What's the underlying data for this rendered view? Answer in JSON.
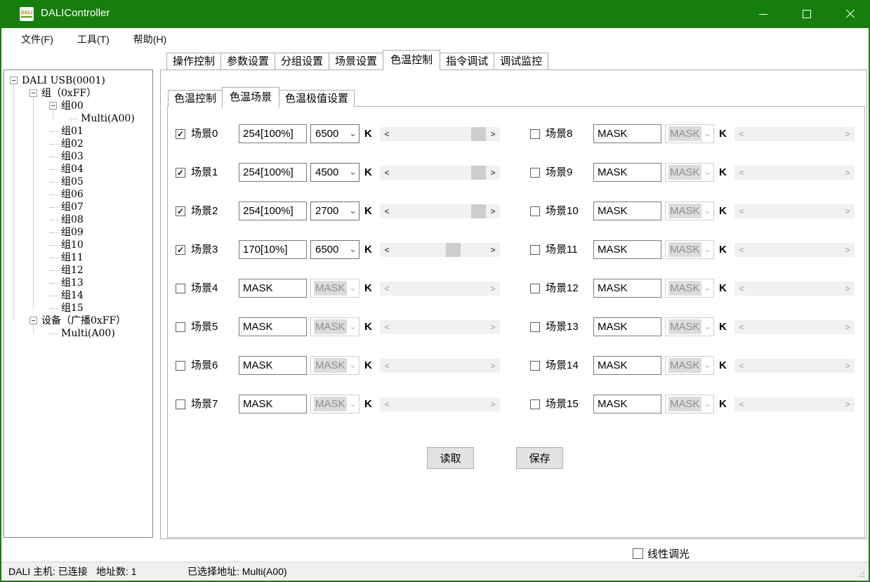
{
  "window": {
    "title": "DALIController",
    "icon_text": "DALI",
    "controls": [
      {
        "name": "minimize"
      },
      {
        "name": "maximize"
      },
      {
        "name": "close"
      }
    ]
  },
  "menu": {
    "items": [
      {
        "label": "文件(F)"
      },
      {
        "label": "工具(T)"
      },
      {
        "label": "帮助(H)"
      }
    ]
  },
  "tree": {
    "rows": [
      {
        "label": "DALI USB(0001)",
        "depth": 0,
        "expand": true
      },
      {
        "label": "组（0xFF）",
        "depth": 1,
        "expand": true
      },
      {
        "label": "组00",
        "depth": 2,
        "expand": true
      },
      {
        "label": "Multi(A00)",
        "depth": 3,
        "expand": false
      },
      {
        "label": "组01",
        "depth": 2,
        "expand": false
      },
      {
        "label": "组02",
        "depth": 2,
        "expand": false
      },
      {
        "label": "组03",
        "depth": 2,
        "expand": false
      },
      {
        "label": "组04",
        "depth": 2,
        "expand": false
      },
      {
        "label": "组05",
        "depth": 2,
        "expand": false
      },
      {
        "label": "组06",
        "depth": 2,
        "expand": false
      },
      {
        "label": "组07",
        "depth": 2,
        "expand": false
      },
      {
        "label": "组08",
        "depth": 2,
        "expand": false
      },
      {
        "label": "组09",
        "depth": 2,
        "expand": false
      },
      {
        "label": "组10",
        "depth": 2,
        "expand": false
      },
      {
        "label": "组11",
        "depth": 2,
        "expand": false
      },
      {
        "label": "组12",
        "depth": 2,
        "expand": false
      },
      {
        "label": "组13",
        "depth": 2,
        "expand": false
      },
      {
        "label": "组14",
        "depth": 2,
        "expand": false
      },
      {
        "label": "组15",
        "depth": 2,
        "expand": false
      },
      {
        "label": "设备（广播0xFF）",
        "depth": 1,
        "expand": true
      },
      {
        "label": "Multi(A00)",
        "depth": 2,
        "expand": false
      }
    ]
  },
  "tabs": {
    "active_index": 4,
    "items": [
      {
        "label": "操作控制"
      },
      {
        "label": "参数设置"
      },
      {
        "label": "分组设置"
      },
      {
        "label": "场景设置"
      },
      {
        "label": "色温控制"
      },
      {
        "label": "指令调试"
      },
      {
        "label": "调试监控"
      }
    ]
  },
  "subtabs": {
    "active_index": 1,
    "items": [
      {
        "label": "色温控制"
      },
      {
        "label": "色温场景"
      },
      {
        "label": "色温极值设置"
      }
    ]
  },
  "scene_panel": {
    "unit": "K",
    "read_button": "读取",
    "save_button": "保存",
    "scenes": [
      {
        "label": "场景0",
        "checked": true,
        "level": "254[100%]",
        "cct": "6500",
        "enabled": true,
        "thumb": 1
      },
      {
        "label": "场景1",
        "checked": true,
        "level": "254[100%]",
        "cct": "4500",
        "enabled": true,
        "thumb": 1
      },
      {
        "label": "场景2",
        "checked": true,
        "level": "254[100%]",
        "cct": "2700",
        "enabled": true,
        "thumb": 1
      },
      {
        "label": "场景3",
        "checked": true,
        "level": "170[10%]",
        "cct": "6500",
        "enabled": true,
        "thumb": 0.67
      },
      {
        "label": "场景4",
        "checked": false,
        "level": "MASK",
        "cct": "MASK",
        "enabled": false,
        "thumb": null
      },
      {
        "label": "场景5",
        "checked": false,
        "level": "MASK",
        "cct": "MASK",
        "enabled": false,
        "thumb": null
      },
      {
        "label": "场景6",
        "checked": false,
        "level": "MASK",
        "cct": "MASK",
        "enabled": false,
        "thumb": null
      },
      {
        "label": "场景7",
        "checked": false,
        "level": "MASK",
        "cct": "MASK",
        "enabled": false,
        "thumb": null
      },
      {
        "label": "场景8",
        "checked": false,
        "level": "MASK",
        "cct": "MASK",
        "enabled": false,
        "thumb": null
      },
      {
        "label": "场景9",
        "checked": false,
        "level": "MASK",
        "cct": "MASK",
        "enabled": false,
        "thumb": null
      },
      {
        "label": "场景10",
        "checked": false,
        "level": "MASK",
        "cct": "MASK",
        "enabled": false,
        "thumb": null
      },
      {
        "label": "场景11",
        "checked": false,
        "level": "MASK",
        "cct": "MASK",
        "enabled": false,
        "thumb": null
      },
      {
        "label": "场景12",
        "checked": false,
        "level": "MASK",
        "cct": "MASK",
        "enabled": false,
        "thumb": null
      },
      {
        "label": "场景13",
        "checked": false,
        "level": "MASK",
        "cct": "MASK",
        "enabled": false,
        "thumb": null
      },
      {
        "label": "场景14",
        "checked": false,
        "level": "MASK",
        "cct": "MASK",
        "enabled": false,
        "thumb": null
      },
      {
        "label": "场景15",
        "checked": false,
        "level": "MASK",
        "cct": "MASK",
        "enabled": false,
        "thumb": null
      }
    ]
  },
  "footer": {
    "linear_dim_label": "线性调光",
    "linear_dim_checked": false
  },
  "statusbar": {
    "host": "DALI 主机: 已连接",
    "address_count": "地址数: 1",
    "selected_address": "已选择地址: Multi(A00)"
  },
  "colors": {
    "titlebar_green": "#157e0c",
    "panel_border": "#acacac",
    "scroll_thumb": "#cdcdcd",
    "status_bg": "#f0f0f0",
    "disabled_text": "#8f8f8f"
  }
}
